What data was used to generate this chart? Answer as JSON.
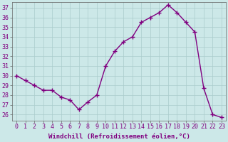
{
  "x": [
    0,
    1,
    2,
    3,
    4,
    5,
    6,
    7,
    8,
    9,
    10,
    11,
    12,
    13,
    14,
    15,
    16,
    17,
    18,
    19,
    20,
    21,
    22,
    23
  ],
  "y": [
    30.0,
    29.5,
    29.0,
    28.5,
    28.5,
    27.8,
    27.5,
    26.5,
    27.3,
    28.0,
    31.0,
    32.5,
    33.5,
    34.0,
    35.5,
    36.0,
    36.5,
    37.3,
    36.5,
    35.5,
    34.5,
    28.7,
    26.0,
    25.7
  ],
  "line_color": "#800080",
  "marker": "+",
  "marker_size": 4,
  "linewidth": 1.0,
  "bg_color": "#cce8e8",
  "grid_color": "#aacccc",
  "xlabel": "Windchill (Refroidissement éolien,°C)",
  "xlabel_fontsize": 6.5,
  "ylabel_ticks": [
    26,
    27,
    28,
    29,
    30,
    31,
    32,
    33,
    34,
    35,
    36,
    37
  ],
  "xlim": [
    -0.5,
    23.5
  ],
  "ylim": [
    25.4,
    37.6
  ],
  "tick_fontsize": 6.0,
  "text_color": "#800080"
}
